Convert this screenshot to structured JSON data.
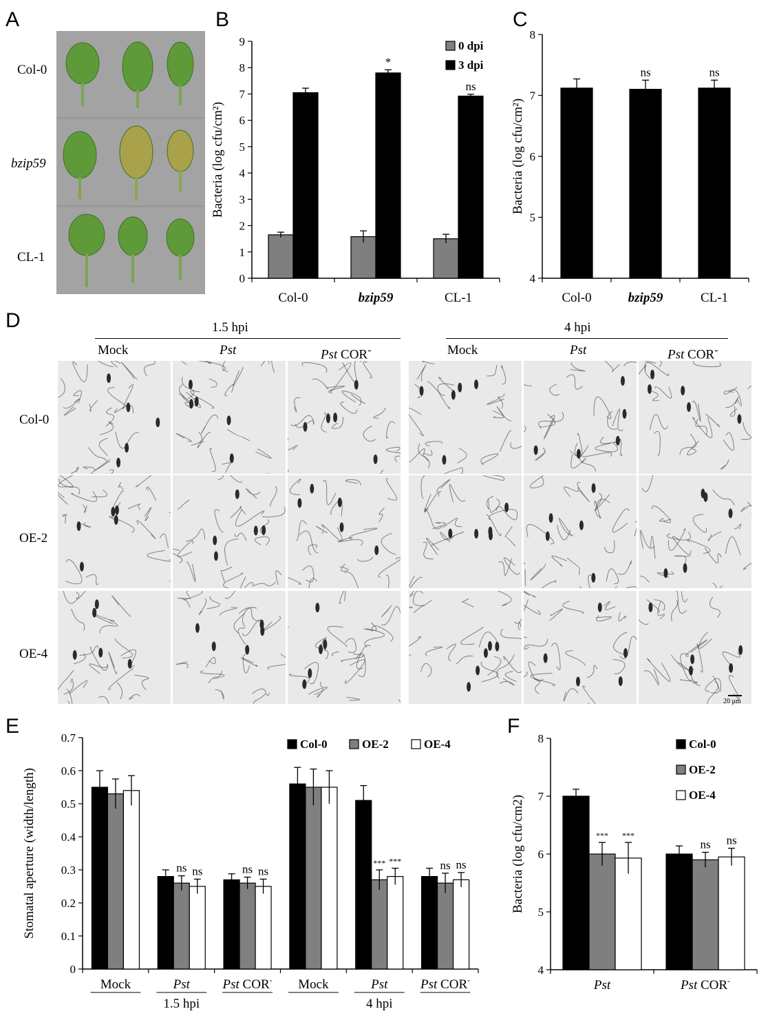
{
  "panel_A": {
    "letter": "A",
    "rows": [
      "Col-0",
      "bzip59",
      "CL-1"
    ]
  },
  "panel_B": {
    "letter": "B"
  },
  "panel_C": {
    "letter": "C"
  },
  "panel_D": {
    "letter": "D",
    "time_points": [
      "1.5 hpi",
      "4 hpi"
    ],
    "treatments": [
      {
        "italic": "",
        "text": "Mock",
        "sup": ""
      },
      {
        "italic": "Pst",
        "text": "",
        "sup": ""
      },
      {
        "italic": "Pst",
        "text": " COR",
        "sup": "-"
      },
      {
        "italic": "",
        "text": "Mock",
        "sup": ""
      },
      {
        "italic": "Pst",
        "text": "",
        "sup": ""
      },
      {
        "italic": "Pst",
        "text": " COR",
        "sup": "-"
      }
    ],
    "rows": [
      "Col-0",
      "OE-2",
      "OE-4"
    ],
    "scale_bar": "20 μm"
  },
  "panel_E": {
    "letter": "E"
  },
  "panel_F": {
    "letter": "F"
  },
  "colors": {
    "black_bar": "#000000",
    "grey_bar": "#7f7f7f",
    "white_bar": "#ffffff",
    "leaf_green": "#5f9a3a",
    "leaf_yellow": "#b8a846",
    "photo_bg": "#a3a3a3",
    "micro_bg": "#e9e9e9",
    "cell_wall": "#3a3a3a"
  },
  "chart_data": [
    {
      "id": "B",
      "type": "bar",
      "ylabel": "Bacteria (log cfu/cm²)",
      "ylim": [
        0,
        9
      ],
      "yticks": [
        0,
        1,
        2,
        3,
        4,
        5,
        6,
        7,
        8,
        9
      ],
      "categories": [
        "Col-0",
        "bzip59",
        "CL-1"
      ],
      "category_italic": [
        false,
        true,
        false
      ],
      "legend_position": "top-right",
      "series": [
        {
          "name": "0 dpi",
          "color": "#7f7f7f",
          "values": [
            1.65,
            1.58,
            1.5
          ],
          "errors": [
            0.1,
            0.22,
            0.17
          ]
        },
        {
          "name": "3 dpi",
          "color": "#000000",
          "values": [
            7.05,
            7.8,
            6.92
          ],
          "errors": [
            0.17,
            0.12,
            0.07
          ]
        }
      ],
      "annotations": [
        {
          "category": 1,
          "series": 1,
          "text": "*"
        },
        {
          "category": 2,
          "series": 1,
          "text": "ns"
        }
      ]
    },
    {
      "id": "C",
      "type": "bar",
      "ylabel": "Bacteria (log cfu/cm²)",
      "ylim": [
        4,
        8
      ],
      "yticks": [
        4,
        5,
        6,
        7,
        8
      ],
      "categories": [
        "Col-0",
        "bzip59",
        "CL-1"
      ],
      "category_italic": [
        false,
        true,
        false
      ],
      "series": [
        {
          "name": "",
          "color": "#000000",
          "values": [
            7.12,
            7.1,
            7.12
          ],
          "errors": [
            0.15,
            0.15,
            0.13
          ]
        }
      ],
      "annotations": [
        {
          "category": 1,
          "series": 0,
          "text": "ns"
        },
        {
          "category": 2,
          "series": 0,
          "text": "ns"
        }
      ]
    },
    {
      "id": "E",
      "type": "bar",
      "ylabel": "Stomatal aperture (width/length)",
      "ylim": [
        0,
        0.7
      ],
      "yticks": [
        0,
        0.1,
        0.2,
        0.3,
        0.4,
        0.5,
        0.6,
        0.7
      ],
      "categories": [
        {
          "italic": "",
          "text": "Mock",
          "sup": ""
        },
        {
          "italic": "Pst",
          "text": "",
          "sup": ""
        },
        {
          "italic": "Pst",
          "text": " COR",
          "sup": "-"
        },
        {
          "italic": "",
          "text": "Mock",
          "sup": ""
        },
        {
          "italic": "Pst",
          "text": "",
          "sup": ""
        },
        {
          "italic": "Pst",
          "text": " COR",
          "sup": "-"
        }
      ],
      "groups": [
        {
          "label": "1.5 hpi",
          "span": [
            0,
            2
          ]
        },
        {
          "label": "4 hpi",
          "span": [
            3,
            5
          ]
        }
      ],
      "legend_position": "top-right",
      "series": [
        {
          "name": "Col-0",
          "color": "#000000",
          "values": [
            0.55,
            0.28,
            0.27,
            0.56,
            0.51,
            0.28
          ],
          "errors": [
            0.05,
            0.02,
            0.018,
            0.05,
            0.045,
            0.025
          ]
        },
        {
          "name": "OE-2",
          "color": "#7f7f7f",
          "values": [
            0.53,
            0.26,
            0.26,
            0.55,
            0.27,
            0.26
          ],
          "errors": [
            0.045,
            0.022,
            0.018,
            0.055,
            0.03,
            0.03
          ]
        },
        {
          "name": "OE-4",
          "color": "#ffffff",
          "values": [
            0.54,
            0.25,
            0.25,
            0.55,
            0.28,
            0.27
          ],
          "errors": [
            0.045,
            0.022,
            0.022,
            0.05,
            0.025,
            0.022
          ]
        }
      ],
      "annotations": [
        {
          "category": 1,
          "series": 1,
          "text": "ns"
        },
        {
          "category": 1,
          "series": 2,
          "text": "ns"
        },
        {
          "category": 2,
          "series": 1,
          "text": "ns"
        },
        {
          "category": 2,
          "series": 2,
          "text": "ns"
        },
        {
          "category": 4,
          "series": 1,
          "text": "***"
        },
        {
          "category": 4,
          "series": 2,
          "text": "***"
        },
        {
          "category": 5,
          "series": 1,
          "text": "ns"
        },
        {
          "category": 5,
          "series": 2,
          "text": "ns"
        }
      ]
    },
    {
      "id": "F",
      "type": "bar",
      "ylabel": "Bacteria (log cfu/cm2)",
      "ylim": [
        4,
        8
      ],
      "yticks": [
        4,
        5,
        6,
        7,
        8
      ],
      "categories": [
        {
          "italic": "Pst",
          "text": "",
          "sup": ""
        },
        {
          "italic": "Pst",
          "text": " COR",
          "sup": "-"
        }
      ],
      "legend_position": "top-right",
      "series": [
        {
          "name": "Col-0",
          "color": "#000000",
          "values": [
            7.0,
            6.0
          ],
          "errors": [
            0.12,
            0.14
          ]
        },
        {
          "name": "OE-2",
          "color": "#7f7f7f",
          "values": [
            6.0,
            5.9
          ],
          "errors": [
            0.2,
            0.13
          ]
        },
        {
          "name": "OE-4",
          "color": "#ffffff",
          "values": [
            5.93,
            5.95
          ],
          "errors": [
            0.27,
            0.15
          ]
        }
      ],
      "annotations": [
        {
          "category": 0,
          "series": 1,
          "text": "***"
        },
        {
          "category": 0,
          "series": 2,
          "text": "***"
        },
        {
          "category": 1,
          "series": 1,
          "text": "ns"
        },
        {
          "category": 1,
          "series": 2,
          "text": "ns"
        }
      ]
    }
  ]
}
